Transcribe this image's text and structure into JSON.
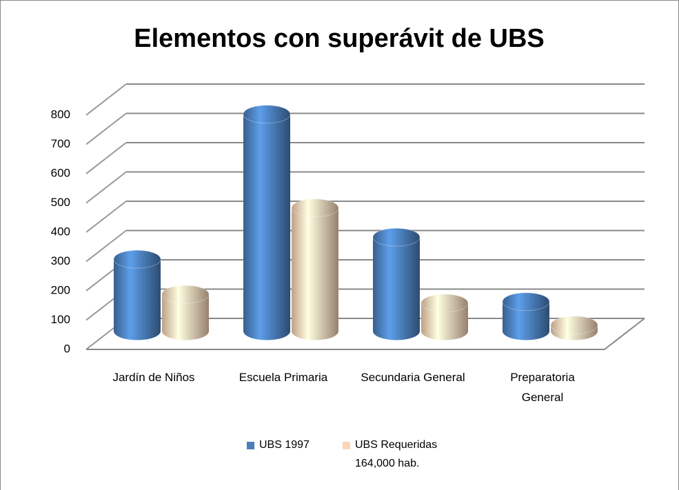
{
  "chart_data": {
    "type": "bar3d",
    "title": "Elementos con superávit de UBS",
    "categories": [
      "Jardín de Niños",
      "Escuela Primaria",
      "Secundaria General",
      "Preparatoria General"
    ],
    "series": [
      {
        "name": "UBS 1997",
        "color": "#4a7ebb",
        "values": [
          255,
          750,
          330,
          110
        ]
      },
      {
        "name": "UBS Requeridas 164,000 hab.",
        "color": "#fcd5b5",
        "values": [
          135,
          430,
          105,
          30
        ]
      }
    ],
    "ylim": [
      0,
      800
    ],
    "yticks": [
      0,
      100,
      200,
      300,
      400,
      500,
      600,
      700,
      800
    ],
    "grid": true,
    "legend": "bottom"
  }
}
